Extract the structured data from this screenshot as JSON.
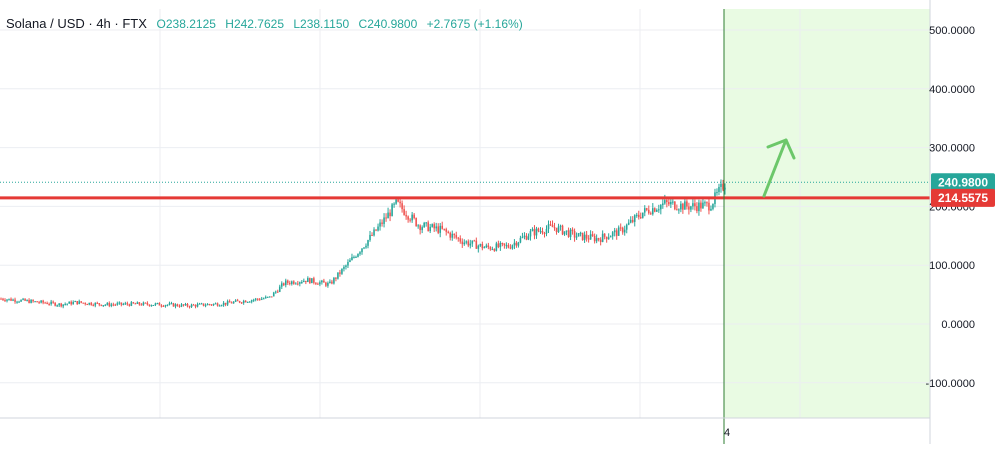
{
  "header": {
    "symbol": "Solana / USD · 4h · FTX",
    "o_label": "O",
    "o_value": "238.2125",
    "h_label": "H",
    "h_value": "242.7625",
    "l_label": "L",
    "l_value": "238.1150",
    "c_label": "C",
    "c_value": "240.9800",
    "change": "+2.7675 (+1.16%)"
  },
  "colors": {
    "up": "#26a69a",
    "down": "#ef5350",
    "resistance": "#e53935",
    "shade": "#e9fbe3",
    "arrow": "#6cc76a",
    "grid": "#eceef2",
    "axis_text": "#131722"
  },
  "chart_data": {
    "type": "candlestick",
    "title": "",
    "xlabel": "",
    "ylabel": "",
    "ylim": [
      -160,
      520
    ],
    "y_ticks": [
      "500.0000",
      "400.0000",
      "300.0000",
      "200.0000",
      "100.0000",
      "0.0000",
      "-100.0000"
    ],
    "y_tick_values": [
      500,
      400,
      300,
      200,
      100,
      0,
      -100
    ],
    "x_ticks": [
      "4"
    ],
    "grid": true,
    "price_path": [
      [
        0,
        43
      ],
      [
        6,
        36
      ],
      [
        8,
        33
      ],
      [
        10,
        37
      ],
      [
        14,
        33
      ],
      [
        18,
        34
      ],
      [
        22,
        33
      ],
      [
        25,
        31
      ],
      [
        30,
        35
      ],
      [
        33,
        40
      ],
      [
        36,
        45
      ],
      [
        38,
        70
      ],
      [
        41,
        75
      ],
      [
        44,
        67
      ],
      [
        47,
        110
      ],
      [
        50,
        155
      ],
      [
        53,
        205
      ],
      [
        56,
        168
      ],
      [
        59,
        160
      ],
      [
        62,
        140
      ],
      [
        65,
        130
      ],
      [
        68,
        132
      ],
      [
        71,
        155
      ],
      [
        74,
        165
      ],
      [
        77,
        150
      ],
      [
        80,
        145
      ],
      [
        83,
        158
      ],
      [
        86,
        190
      ],
      [
        89,
        205
      ],
      [
        92,
        200
      ],
      [
        95,
        202
      ],
      [
        97,
        240
      ]
    ],
    "last_price": 240.98,
    "last_price_label": "240.9800",
    "resistance_price": 214.5575,
    "resistance_label": "214.5575",
    "annotations": [
      "resistance line at 214.5575",
      "shaded forecast zone",
      "upward arrow"
    ]
  }
}
